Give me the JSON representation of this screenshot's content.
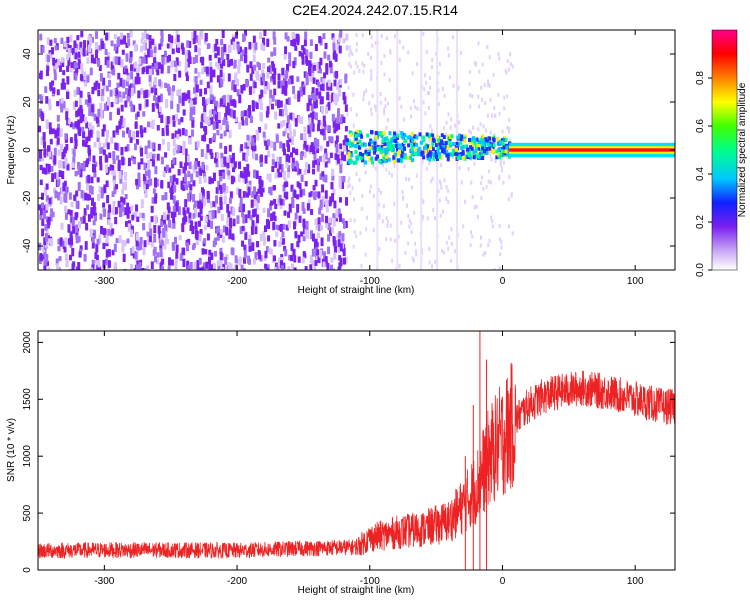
{
  "title": "C2E4.2024.242.07.15.R14",
  "colors": {
    "signal_red": "#ee2222",
    "axis": "#000000",
    "spectrogram_purple": "#7a20f0"
  },
  "chart_data": [
    {
      "type": "heatmap",
      "xlabel": "Height of straight line (km)",
      "ylabel": "Frequency (Hz)",
      "xlim": [
        -350,
        130
      ],
      "ylim": [
        -50,
        50
      ],
      "x_ticks": [
        -300,
        -200,
        -100,
        0,
        100
      ],
      "y_ticks": [
        -40,
        -20,
        0,
        20,
        40
      ],
      "colorbar": {
        "label": "Normalized spectral amplitude",
        "range": [
          0,
          1
        ],
        "ticks": [
          0.0,
          0.2,
          0.4,
          0.6,
          0.8
        ],
        "colormap": "rainbow"
      },
      "regions": [
        {
          "x_range": [
            -350,
            -118
          ],
          "description_level": 0.15
        },
        {
          "x_range": [
            -118,
            5
          ],
          "description_level": 0.45
        },
        {
          "x_range": [
            5,
            130
          ],
          "description_level": 0.95
        }
      ]
    },
    {
      "type": "line",
      "xlabel": "Height of straight line (km)",
      "ylabel": "SNR (10 * v/v)",
      "xlim": [
        -350,
        130
      ],
      "ylim": [
        0,
        2100
      ],
      "x_ticks": [
        -300,
        -200,
        -100,
        0,
        100
      ],
      "y_ticks": [
        0,
        500,
        1000,
        1500,
        2000
      ],
      "series": [
        {
          "x": [
            -350,
            -300,
            -250,
            -200,
            -150,
            -110,
            -100,
            -80,
            -60,
            -40,
            -30,
            -20,
            -10,
            0,
            10,
            20,
            30,
            40,
            60,
            80,
            100,
            120,
            130
          ],
          "y": [
            170,
            175,
            175,
            170,
            190,
            200,
            280,
            330,
            360,
            430,
            560,
            720,
            1000,
            1150,
            1320,
            1450,
            1520,
            1560,
            1600,
            1560,
            1500,
            1440,
            1430
          ]
        }
      ]
    }
  ]
}
